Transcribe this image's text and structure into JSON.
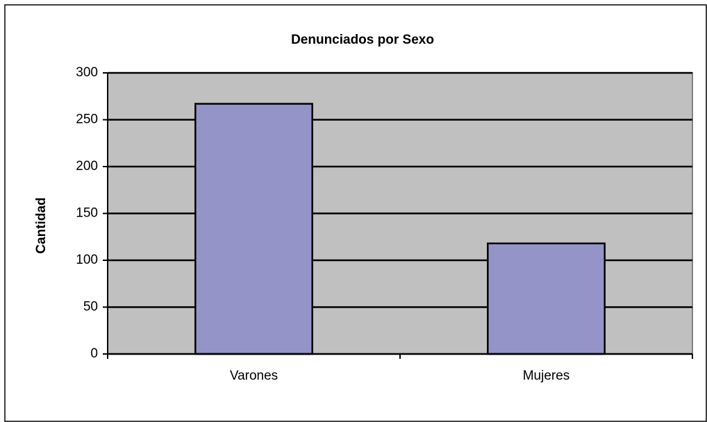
{
  "chart_data": {
    "type": "bar",
    "title": "Denunciados por Sexo",
    "y_label": "Cantidad",
    "categories": [
      "Varones",
      "Mujeres"
    ],
    "values": [
      267,
      118
    ],
    "color": "#9494c8",
    "ylim": [
      0,
      300
    ],
    "yticks": [
      0,
      50,
      100,
      150,
      200,
      250,
      300
    ],
    "grid": true
  }
}
